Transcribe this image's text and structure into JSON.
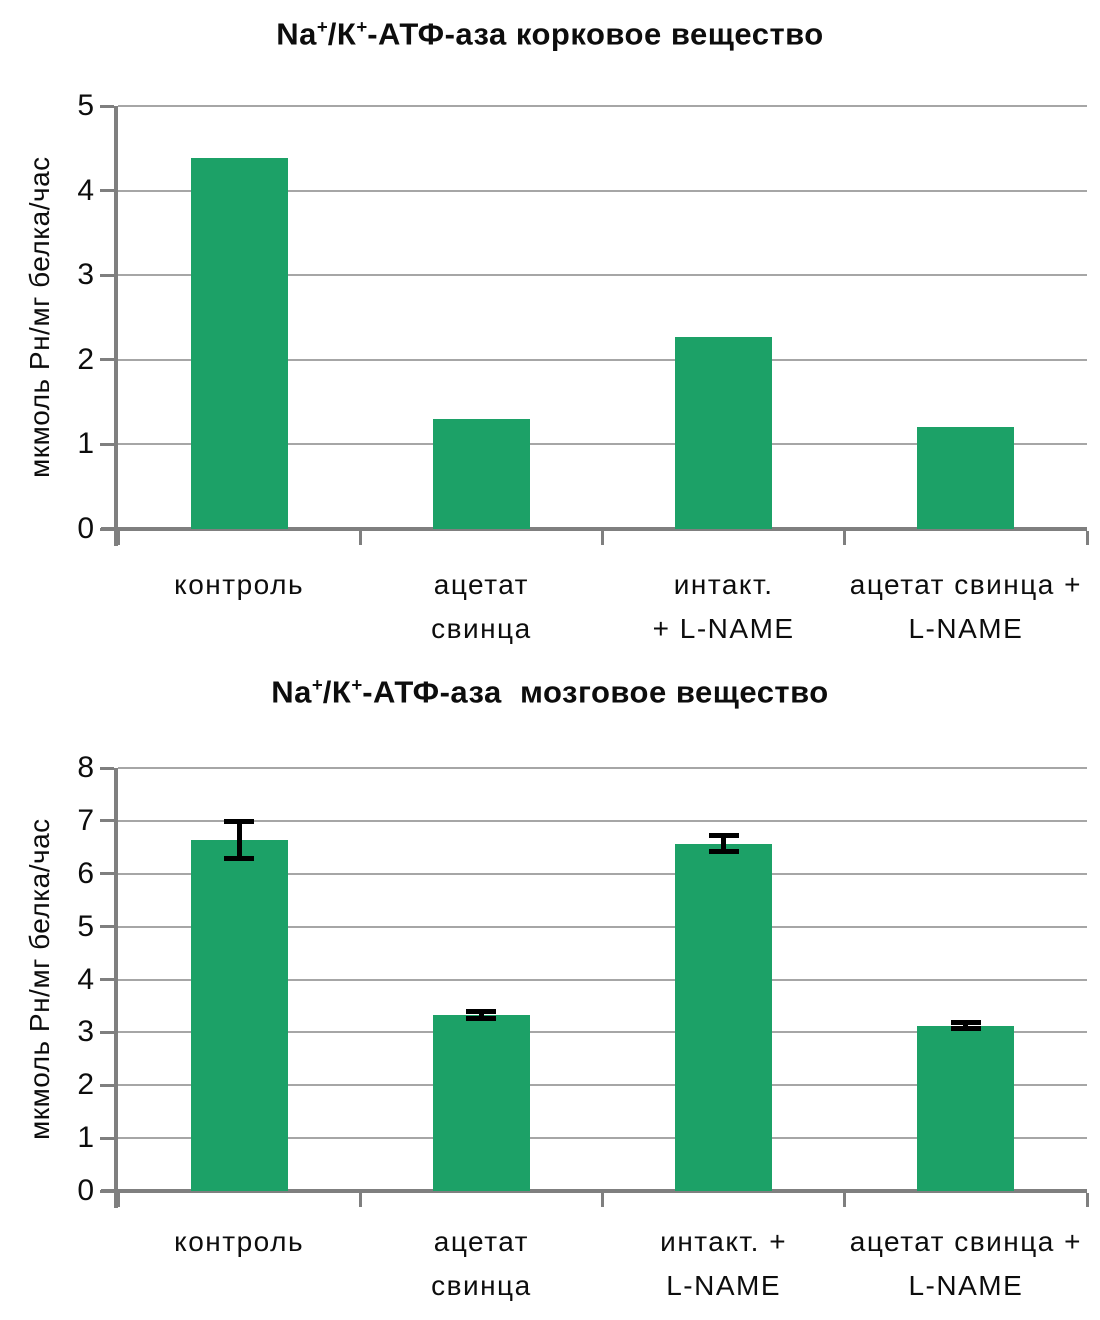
{
  "page": {
    "background": "#ffffff"
  },
  "chart_data": [
    {
      "type": "bar",
      "title": "Na+/K+-АТФ-аза корковое вещество",
      "title_parts": {
        "base1": "Na",
        "sup1": "+",
        "base2": "/К",
        "sup2": "+",
        "base3": "-АТФ-аза корковое вещество"
      },
      "ylabel": "мкмоль Рн/мг белка/час",
      "xlabel": "",
      "ylim": [
        0,
        5
      ],
      "ystep": 1,
      "grid": true,
      "legend_position": "none",
      "bar_color": "#1CA167",
      "axis_color": "#7f7f7f",
      "grid_color": "#A6A6A6",
      "error_color": "#000000",
      "categories": [
        "контроль",
        "ацетат свинца",
        "интакт. + L-NAME",
        "ацетат свинца + L-NAME"
      ],
      "category_lines": [
        [
          "контроль"
        ],
        [
          "ацетат",
          "свинца"
        ],
        [
          "интакт.",
          "+ L-NAME"
        ],
        [
          "ацетат свинца +",
          "L-NAME"
        ]
      ],
      "values": [
        4.38,
        1.3,
        2.27,
        1.2
      ],
      "errors": [
        0,
        0,
        0,
        0
      ]
    },
    {
      "type": "bar",
      "title": "Na+/K+-АТФ-аза  мозговое вещество",
      "title_parts": {
        "base1": "Na",
        "sup1": "+",
        "base2": "/К",
        "sup2": "+",
        "base3": "-АТФ-аза  мозговое вещество"
      },
      "ylabel": "мкмоль Рн/мг белка/час",
      "xlabel": "",
      "ylim": [
        0,
        8
      ],
      "ystep": 1,
      "grid": true,
      "legend_position": "none",
      "bar_color": "#1CA167",
      "axis_color": "#7f7f7f",
      "grid_color": "#A6A6A6",
      "error_color": "#000000",
      "categories": [
        "контроль",
        "ацетат свинца",
        "интакт. + L-NAME",
        "ацетат свинца + L-NAME"
      ],
      "category_lines": [
        [
          "контроль"
        ],
        [
          "ацетат",
          "свинца"
        ],
        [
          "интакт. +",
          "L-NAME"
        ],
        [
          "ацетат свинца +",
          "L-NAME"
        ]
      ],
      "values": [
        6.63,
        3.33,
        6.57,
        3.13
      ],
      "errors": [
        0.36,
        0.07,
        0.16,
        0.07
      ]
    }
  ]
}
